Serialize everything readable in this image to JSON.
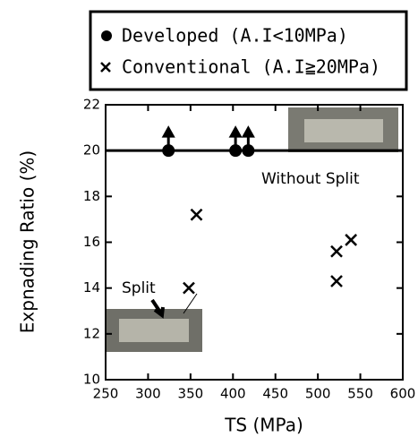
{
  "chart_data": {
    "type": "scatter",
    "x_label": "TS (MPa)",
    "y_label": "Expnading Ratio (%)",
    "series": [
      {
        "name": "Developed (A.I<10MPa)",
        "marker": "circle",
        "color": "#000000",
        "x": [
          324,
          403,
          418
        ],
        "values": [
          20,
          20,
          20
        ]
      },
      {
        "name": "Conventional (A.I≧20MPa)",
        "marker": "cross",
        "color": "#000000",
        "x": [
          348,
          357,
          522,
          522,
          539
        ],
        "values": [
          14,
          17.2,
          15.6,
          14.3,
          16.1
        ]
      }
    ],
    "reference_line": 20,
    "annotations": [
      "Without Split",
      "Split"
    ],
    "xlim": [
      250,
      600
    ],
    "xticks": [
      250,
      300,
      350,
      400,
      450,
      500,
      550,
      600
    ],
    "ylim": [
      10,
      22
    ],
    "yticks": [
      10,
      12,
      14,
      16,
      18,
      20,
      22
    ]
  }
}
